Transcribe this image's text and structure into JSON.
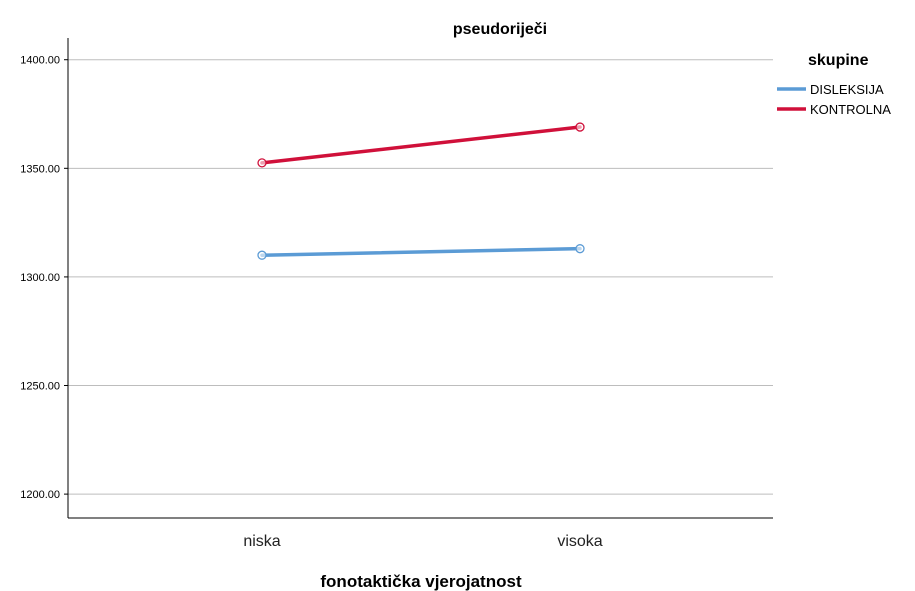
{
  "chart_data": {
    "type": "line",
    "title": "pseudoriječi",
    "xlabel": "fonotaktička vjerojatnost",
    "ylabel": "",
    "categories": [
      "niska",
      "visoka"
    ],
    "yticks": [
      "1200.00",
      "1250.00",
      "1300.00",
      "1350.00",
      "1400.00"
    ],
    "ylim": [
      1189,
      1410
    ],
    "grid": true,
    "legend": {
      "title": "skupine",
      "position": "top-right"
    },
    "series": [
      {
        "name": "DISLEKSIJA",
        "values": [
          1310,
          1313
        ],
        "color": "#5b9bd5"
      },
      {
        "name": "KONTROLNA",
        "values": [
          1352.5,
          1369
        ],
        "color": "#d0103a"
      }
    ]
  }
}
